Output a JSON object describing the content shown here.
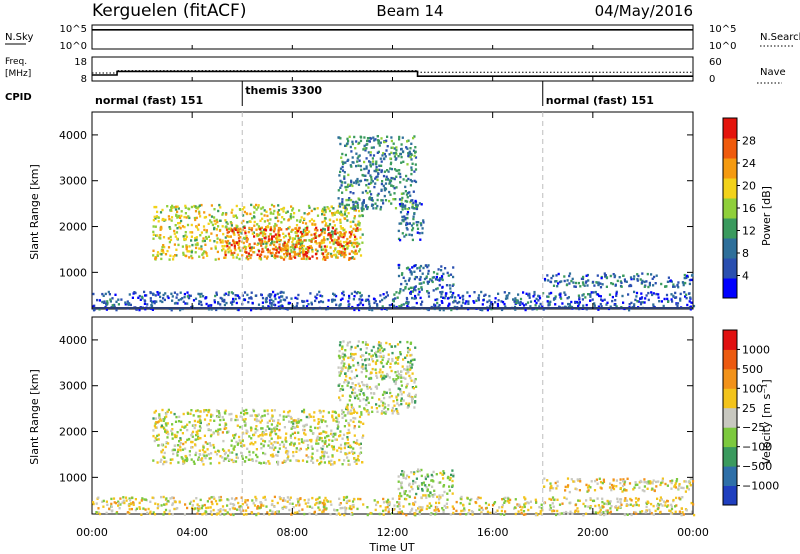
{
  "header": {
    "station": "Kerguelen (fitACF)",
    "beam": "Beam 14",
    "date": "04/May/2016"
  },
  "noise_panel": {
    "label": "N.Sky",
    "left_ticks": [
      "10^5",
      "10^0"
    ],
    "right_ticks": [
      "10^5",
      "10^0"
    ],
    "right_label": "N.Search"
  },
  "freq_panel": {
    "label_top": "Freq.",
    "label_unit": "[MHz]",
    "left_ticks": [
      "18",
      "8"
    ],
    "right_ticks": [
      "60",
      "0"
    ],
    "right_label": "Nave"
  },
  "cpid_panel": {
    "label": "CPID",
    "segments": [
      {
        "start_h": 0,
        "label": "normal (fast) 151"
      },
      {
        "start_h": 6,
        "label": "themis 3300"
      },
      {
        "start_h": 18,
        "label": "normal (fast) 151"
      }
    ]
  },
  "power_colorbar": {
    "label": "Power [dB]",
    "ticks": [
      "28",
      "24",
      "20",
      "16",
      "12",
      "8",
      "4"
    ],
    "colors": [
      "#0000ff",
      "#2a4fb0",
      "#2e6f9a",
      "#3a9a5e",
      "#8fcf3a",
      "#f2d21a",
      "#f59a10",
      "#ef5a0c",
      "#e4140c"
    ]
  },
  "velocity_colorbar": {
    "label": "Velocity [m s⁻¹]",
    "ticks": [
      "1000",
      "500",
      "100",
      "25",
      "−25",
      "−100",
      "−500",
      "−1000"
    ],
    "colors": [
      "#1f3fbf",
      "#2e6fa8",
      "#3a9a5e",
      "#7cc93e",
      "#c8c8c0",
      "#f3c41c",
      "#f2921a",
      "#ec5a10",
      "#e01010"
    ]
  },
  "axes": {
    "ylabel": "Slant Range [km]",
    "yticks": [
      "4000",
      "3000",
      "2000",
      "1000"
    ],
    "xlabel": "Time UT",
    "xticks": [
      "00:00",
      "04:00",
      "08:00",
      "12:00",
      "16:00",
      "20:00",
      "00:00"
    ]
  },
  "chart_data": [
    {
      "type": "line",
      "title": "N.Sky / N.Search",
      "x_unit": "hours UT",
      "xlim": [
        0,
        24
      ],
      "series": [
        {
          "name": "N.Sky",
          "x": [
            0,
            4,
            8,
            12,
            16,
            20,
            24
          ],
          "y": [
            10000,
            10000,
            10000,
            10000,
            10000,
            10000,
            10000
          ]
        }
      ],
      "ylim": [
        1,
        100000
      ],
      "log_scale": true
    },
    {
      "type": "line",
      "title": "Freq. / Nave",
      "x_unit": "hours UT",
      "xlim": [
        0,
        24
      ],
      "series": [
        {
          "name": "Freq.",
          "x": [
            0,
            1,
            1,
            13,
            13,
            24
          ],
          "y": [
            10.5,
            10.5,
            12,
            12,
            10,
            10
          ]
        },
        {
          "name": "Nave",
          "x": [
            0,
            1,
            1,
            13,
            13,
            24
          ],
          "y": [
            20,
            20,
            26,
            26,
            22,
            22
          ]
        }
      ]
    },
    {
      "type": "heatmap",
      "title": "Power [dB]",
      "x_unit": "hours UT",
      "xlim": [
        0,
        24
      ],
      "y_unit": "km",
      "ylim": [
        200,
        4500
      ],
      "value_range": [
        0,
        32
      ],
      "regions": [
        {
          "t0": 2.4,
          "t1": 10.8,
          "r0": 1300,
          "r1": 2500,
          "value": 18
        },
        {
          "t0": 5.2,
          "t1": 10.6,
          "r0": 1300,
          "r1": 2000,
          "value": 26
        },
        {
          "t0": 9.8,
          "t1": 12.9,
          "r0": 2400,
          "r1": 4000,
          "value": 10
        },
        {
          "t0": 12.2,
          "t1": 13.2,
          "r0": 1700,
          "r1": 2600,
          "value": 8
        },
        {
          "t0": 12.2,
          "t1": 14.4,
          "r0": 600,
          "r1": 1200,
          "value": 8
        },
        {
          "t0": 18.0,
          "t1": 24.0,
          "r0": 700,
          "r1": 1000,
          "value": 8
        },
        {
          "t0": 0.0,
          "t1": 24.0,
          "r0": 200,
          "r1": 600,
          "value": 6
        }
      ]
    },
    {
      "type": "heatmap",
      "title": "Velocity [m s⁻¹]",
      "x_unit": "hours UT",
      "xlim": [
        0,
        24
      ],
      "y_unit": "km",
      "ylim": [
        200,
        4500
      ],
      "value_range": [
        -1000,
        1000
      ],
      "regions": [
        {
          "t0": 2.4,
          "t1": 10.8,
          "r0": 1300,
          "r1": 2500,
          "value": 0
        },
        {
          "t0": 9.8,
          "t1": 12.9,
          "r0": 2400,
          "r1": 4000,
          "value": 100
        },
        {
          "t0": 12.2,
          "t1": 14.4,
          "r0": 600,
          "r1": 1200,
          "value": 100
        },
        {
          "t0": 18.0,
          "t1": 24.0,
          "r0": 700,
          "r1": 1000,
          "value": -100
        },
        {
          "t0": 0.0,
          "t1": 24.0,
          "r0": 200,
          "r1": 600,
          "value": -100
        }
      ]
    }
  ]
}
